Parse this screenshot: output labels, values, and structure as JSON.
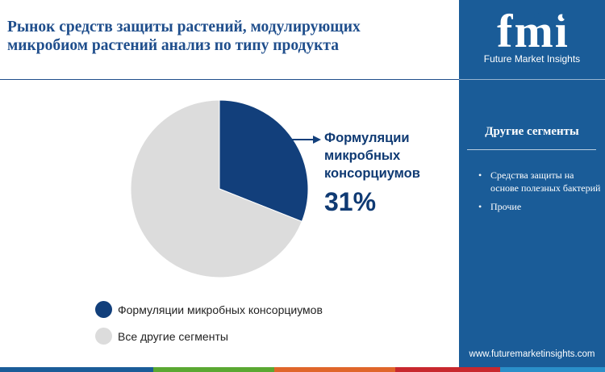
{
  "header": {
    "title": "Рынок средств защиты растений, модулирующих микробиом растений анализ по типу продукта"
  },
  "chart_data": {
    "type": "pie",
    "categories": [
      "Формуляции микробных консорциумов",
      "Все другие сегменты"
    ],
    "values": [
      31,
      69
    ],
    "colors": [
      "#123f7b",
      "#dcdcdc"
    ],
    "start": "12 o'clock, clockwise",
    "highlight": {
      "label": "Формуляции микробных консорциумов",
      "value_text": "31%"
    },
    "legend": {
      "placement": "bottom-left",
      "items": [
        {
          "label": "Формуляции микробных консорциумов",
          "color": "#123f7b"
        },
        {
          "label": "Все другие сегменты",
          "color": "#dcdcdc"
        }
      ]
    }
  },
  "sidebar": {
    "logo_text": "fmi",
    "logo_subtitle": "Future Market Insights",
    "other_segments_title": "Другие сегменты",
    "bullet_glyph": "•",
    "segments": [
      "Средства защиты на основе полезных бактерий",
      "Прочие"
    ],
    "website": "www.futuremarketinsights.com",
    "background_color": "#1a5c98"
  },
  "bottom_bar_colors": [
    "#1a5c98",
    "#5aa832",
    "#e0662a",
    "#c8282e",
    "#2a8fc9"
  ]
}
